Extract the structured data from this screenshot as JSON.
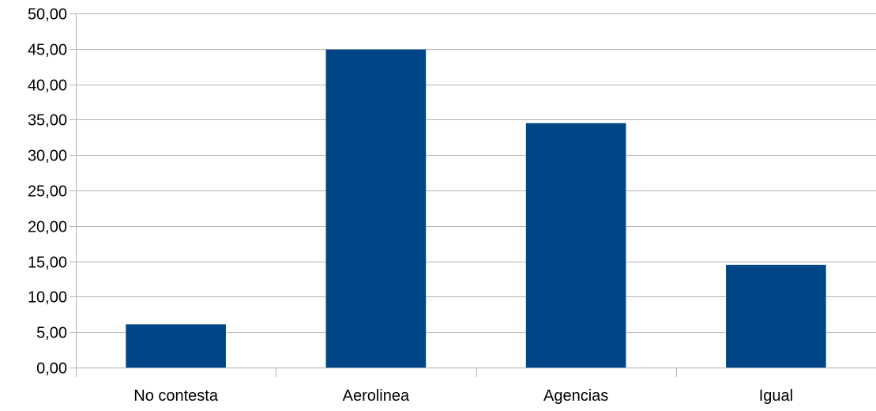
{
  "chart_data": {
    "type": "bar",
    "categories": [
      "No contesta",
      "Aerolinea",
      "Agencias",
      "Igual"
    ],
    "values": [
      6.1,
      44.9,
      34.5,
      14.5
    ],
    "ylim": [
      0,
      50
    ],
    "yticks": [
      "0,00",
      "5,00",
      "10,00",
      "15,00",
      "20,00",
      "25,00",
      "30,00",
      "35,00",
      "40,00",
      "45,00",
      "50,00"
    ],
    "grid": true,
    "legend": "none",
    "title": "",
    "xlabel": "",
    "ylabel": ""
  },
  "colors": {
    "bar": "#004586",
    "grid": "#b3b3b3",
    "axis": "#b3b3b3"
  }
}
